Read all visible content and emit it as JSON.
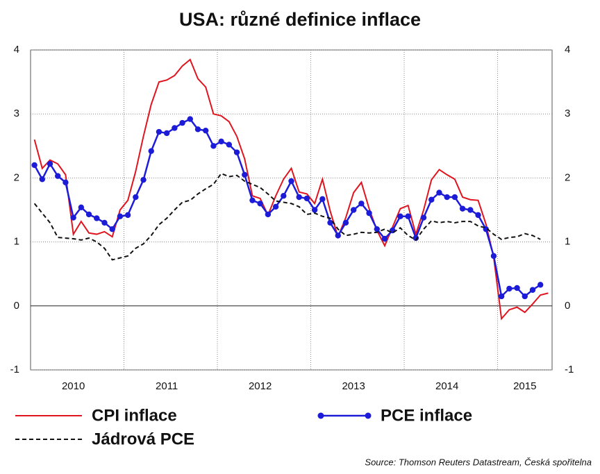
{
  "chart_data": {
    "type": "line",
    "title": "USA: různé definice inflace",
    "source": "Source: Thomson Reuters Datastream, Česká spořitelna",
    "categories": [
      null,
      null,
      null,
      null,
      null,
      "2010",
      null,
      null,
      null,
      null,
      null,
      null,
      null,
      null,
      null,
      null,
      null,
      "2011",
      null,
      null,
      null,
      null,
      null,
      null,
      null,
      null,
      null,
      null,
      null,
      "2012",
      null,
      null,
      null,
      null,
      null,
      null,
      null,
      null,
      null,
      null,
      null,
      "2013",
      null,
      null,
      null,
      null,
      null,
      null,
      null,
      null,
      null,
      null,
      null,
      "2014",
      null,
      null,
      null,
      null,
      null,
      null,
      null,
      null,
      null,
      "2015",
      null,
      null,
      null
    ],
    "series": [
      {
        "name": "CPI inflace",
        "color": "#e0141e",
        "marker": false,
        "dash": false,
        "values": [
          2.6,
          2.15,
          2.28,
          2.22,
          2.05,
          1.12,
          1.32,
          1.14,
          1.12,
          1.16,
          1.08,
          1.5,
          1.65,
          2.1,
          2.65,
          3.15,
          3.5,
          3.53,
          3.6,
          3.75,
          3.85,
          3.55,
          3.42,
          3.0,
          2.97,
          2.88,
          2.65,
          2.3,
          1.72,
          1.68,
          1.42,
          1.72,
          1.98,
          2.15,
          1.78,
          1.75,
          1.6,
          1.98,
          1.48,
          1.08,
          1.38,
          1.77,
          1.93,
          1.52,
          1.18,
          0.94,
          1.23,
          1.52,
          1.57,
          1.12,
          1.5,
          1.97,
          2.13,
          2.05,
          1.98,
          1.7,
          1.66,
          1.65,
          1.28,
          0.76,
          -0.2,
          -0.06,
          -0.02,
          -0.1,
          0.03,
          0.17,
          0.2
        ]
      },
      {
        "name": "PCE inflace",
        "color": "#1c1cd8",
        "marker": true,
        "dash": false,
        "values": [
          2.2,
          1.98,
          2.22,
          2.03,
          1.93,
          1.38,
          1.54,
          1.43,
          1.37,
          1.3,
          1.2,
          1.4,
          1.42,
          1.7,
          1.97,
          2.42,
          2.72,
          2.7,
          2.78,
          2.86,
          2.92,
          2.76,
          2.74,
          2.5,
          2.57,
          2.52,
          2.4,
          2.05,
          1.65,
          1.6,
          1.43,
          1.55,
          1.72,
          1.95,
          1.7,
          1.68,
          1.5,
          1.67,
          1.3,
          1.1,
          1.3,
          1.5,
          1.6,
          1.45,
          1.2,
          1.05,
          1.18,
          1.4,
          1.4,
          1.06,
          1.38,
          1.66,
          1.77,
          1.7,
          1.7,
          1.52,
          1.5,
          1.42,
          1.2,
          0.78,
          0.15,
          0.27,
          0.28,
          0.15,
          0.25,
          0.33,
          null
        ]
      },
      {
        "name": "Jádrová PCE",
        "color": "#111111",
        "marker": false,
        "dash": true,
        "values": [
          1.6,
          1.45,
          1.3,
          1.07,
          1.06,
          1.05,
          1.03,
          1.06,
          1.0,
          0.9,
          0.72,
          0.75,
          0.78,
          0.9,
          0.97,
          1.1,
          1.27,
          1.37,
          1.5,
          1.62,
          1.65,
          1.75,
          1.83,
          1.9,
          2.07,
          2.02,
          2.04,
          1.95,
          1.9,
          1.85,
          1.75,
          1.64,
          1.62,
          1.6,
          1.55,
          1.43,
          1.45,
          1.4,
          1.37,
          1.2,
          1.1,
          1.12,
          1.15,
          1.14,
          1.15,
          1.2,
          1.14,
          1.22,
          1.1,
          1.03,
          1.2,
          1.33,
          1.3,
          1.32,
          1.3,
          1.32,
          1.32,
          1.25,
          1.22,
          1.12,
          1.04,
          1.07,
          1.08,
          1.13,
          1.1,
          1.04,
          null
        ]
      }
    ],
    "ylim": [
      -1,
      4
    ],
    "yticks": [
      -1,
      0,
      1,
      2,
      3,
      4
    ],
    "grid": true
  }
}
